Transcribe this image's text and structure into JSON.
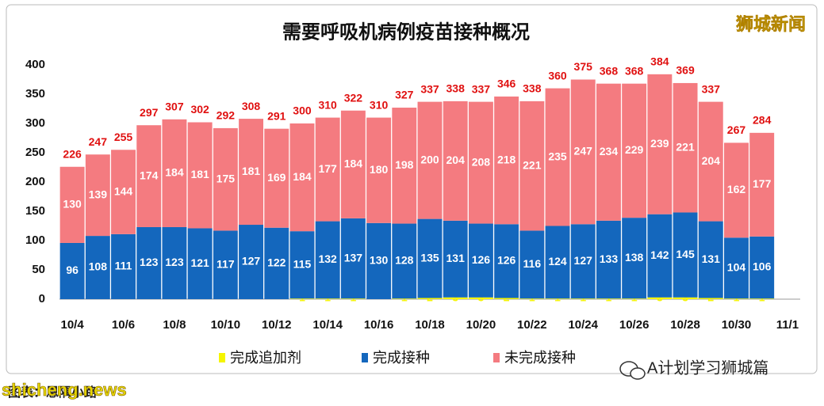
{
  "chart_data": {
    "type": "bar",
    "stacked": true,
    "title": "需要呼吸机病例疫苗接种概况",
    "categories": [
      "10/4",
      null,
      "10/6",
      null,
      "10/8",
      null,
      "10/10",
      null,
      "10/12",
      null,
      "10/14",
      null,
      "10/16",
      null,
      "10/18",
      null,
      "10/20",
      null,
      "10/22",
      null,
      "10/24",
      null,
      "10/26",
      null,
      "10/28",
      null,
      "10/30",
      null,
      "11/1"
    ],
    "series": [
      {
        "name": "完成追加剂",
        "color": "#f5f500",
        "values": [
          0,
          0,
          0,
          0,
          0,
          0,
          0,
          0,
          0,
          1,
          1,
          1,
          0,
          1,
          2,
          3,
          3,
          2,
          1,
          1,
          1,
          1,
          1,
          3,
          3,
          2,
          1,
          1,
          null
        ]
      },
      {
        "name": "完成接种",
        "color": "#1467bd",
        "values": [
          96,
          108,
          111,
          123,
          123,
          121,
          117,
          127,
          122,
          115,
          132,
          137,
          130,
          128,
          135,
          131,
          126,
          126,
          116,
          124,
          127,
          133,
          138,
          142,
          145,
          131,
          104,
          106,
          null
        ]
      },
      {
        "name": "未完成接种",
        "color": "#f47b80",
        "values": [
          130,
          139,
          144,
          174,
          184,
          181,
          175,
          181,
          169,
          184,
          177,
          184,
          180,
          198,
          200,
          204,
          208,
          218,
          221,
          235,
          247,
          234,
          229,
          239,
          221,
          204,
          162,
          177,
          null
        ]
      }
    ],
    "totals": [
      226,
      247,
      255,
      297,
      307,
      302,
      292,
      308,
      291,
      300,
      310,
      322,
      310,
      327,
      337,
      338,
      337,
      346,
      338,
      360,
      375,
      368,
      368,
      384,
      369,
      337,
      267,
      284,
      null
    ],
    "ylim": [
      0,
      400
    ],
    "yticks": [
      0,
      50,
      100,
      150,
      200,
      250,
      300,
      350,
      400
    ],
    "grid": false
  },
  "watermark": "狮城新闻",
  "wechat": "A计划学习狮城篇",
  "site": "shicheng.news",
  "credit": "图表：恩隅小路"
}
